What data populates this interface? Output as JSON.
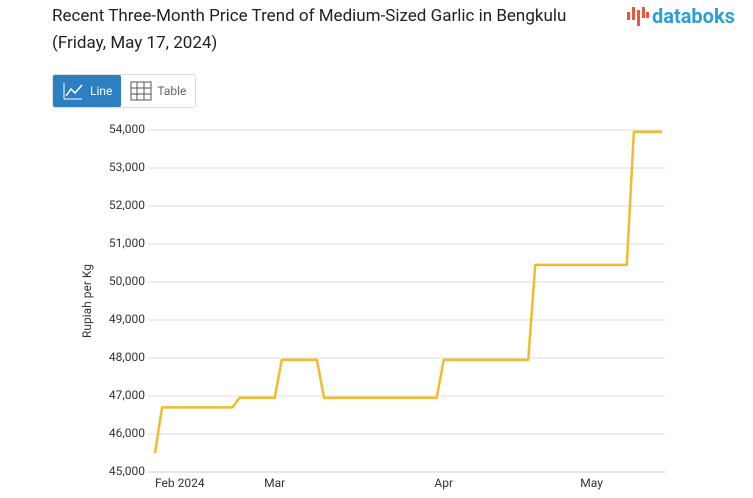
{
  "ui": {
    "logo": "databoks",
    "buttons": [
      "Line",
      "Table"
    ]
  },
  "chart_data": {
    "type": "line",
    "title": "Recent Three-Month Price Trend of Medium-Sized Garlic in Bengkulu (Friday, May 17, 2024)",
    "y_label": "Rupiah per Kg",
    "color": "#f0bc2e",
    "categories": [
      "Feb 2024",
      null,
      null,
      null,
      null,
      null,
      null,
      null,
      null,
      null,
      null,
      null,
      null,
      null,
      null,
      null,
      null,
      "Mar",
      null,
      null,
      null,
      null,
      null,
      null,
      null,
      null,
      null,
      null,
      null,
      null,
      null,
      null,
      null,
      null,
      null,
      null,
      null,
      null,
      null,
      null,
      null,
      "Apr",
      null,
      null,
      null,
      null,
      null,
      null,
      null,
      null,
      null,
      null,
      null,
      null,
      null,
      null,
      null,
      null,
      null,
      null,
      null,
      null,
      "May",
      null,
      null,
      null,
      null,
      null,
      null,
      null,
      null,
      null,
      null
    ],
    "values": [
      45500,
      46700,
      46700,
      46700,
      46700,
      46700,
      46700,
      46700,
      46700,
      46700,
      46700,
      46700,
      46950,
      46950,
      46950,
      46950,
      46950,
      46950,
      47950,
      47950,
      47950,
      47950,
      47950,
      47950,
      46950,
      46950,
      46950,
      46950,
      46950,
      46950,
      46950,
      46950,
      46950,
      46950,
      46950,
      46950,
      46950,
      46950,
      46950,
      46950,
      46950,
      47950,
      47950,
      47950,
      47950,
      47950,
      47950,
      47950,
      47950,
      47950,
      47950,
      47950,
      47950,
      47950,
      50450,
      50450,
      50450,
      50450,
      50450,
      50450,
      50450,
      50450,
      50450,
      50450,
      50450,
      50450,
      50450,
      50450,
      53950,
      53950,
      53950,
      53950,
      53950
    ],
    "ylim": [
      45000,
      54000
    ],
    "yticks": [
      {
        "value": 45000,
        "label": "45,000"
      },
      {
        "value": 46000,
        "label": "46,000"
      },
      {
        "value": 47000,
        "label": "47,000"
      },
      {
        "value": 48000,
        "label": "48,000"
      },
      {
        "value": 49000,
        "label": "49,000"
      },
      {
        "value": 50000,
        "label": "50,000"
      },
      {
        "value": 51000,
        "label": "51,000"
      },
      {
        "value": 52000,
        "label": "52,000"
      },
      {
        "value": 53000,
        "label": "53,000"
      },
      {
        "value": 54000,
        "label": "54,000"
      }
    ],
    "grid": true
  }
}
